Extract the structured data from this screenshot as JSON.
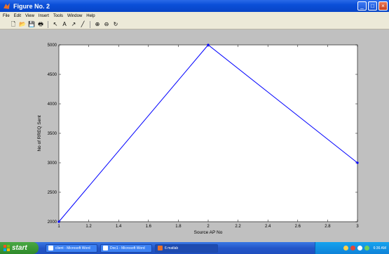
{
  "window": {
    "title": "Figure No. 2",
    "buttons": {
      "minimize": "_",
      "maximize": "□",
      "close": "×"
    }
  },
  "menu": {
    "items": [
      "File",
      "Edit",
      "View",
      "Insert",
      "Tools",
      "Window",
      "Help"
    ]
  },
  "toolbar": {
    "icons": [
      "new-file-icon",
      "open-folder-icon",
      "save-icon",
      "print-icon",
      "select-arrow-icon",
      "text-icon",
      "arrow-icon",
      "line-icon",
      "zoom-in-icon",
      "zoom-out-icon",
      "rotate-icon"
    ],
    "glyphs": [
      "🗋",
      "📂",
      "💾",
      "🖶",
      "↖",
      "A",
      "↗",
      "╱",
      "⊕",
      "⊖",
      "↻"
    ]
  },
  "chart_data": {
    "type": "line",
    "x": [
      1,
      2,
      3
    ],
    "series": [
      {
        "values": [
          2000,
          5000,
          3000
        ],
        "color": "#0000ff"
      }
    ],
    "xlabel": "Source AP No",
    "ylabel": "No of RREQ Sent",
    "xlim": [
      1,
      3
    ],
    "ylim": [
      2000,
      5000
    ],
    "xticks": [
      1,
      1.2,
      1.4,
      1.6,
      1.8,
      2,
      2.2,
      2.4,
      2.6,
      2.8,
      3
    ],
    "xtick_labels": [
      "1",
      "1.2",
      "1.4",
      "1.6",
      "1.8",
      "2",
      "2.2",
      "2.4",
      "2.6",
      "2.8",
      "3"
    ],
    "yticks": [
      2000,
      2500,
      3000,
      3500,
      4000,
      4500,
      5000
    ],
    "ytick_labels": [
      "2000",
      "2500",
      "3000",
      "3500",
      "4000",
      "4500",
      "5000"
    ],
    "grid": false
  },
  "taskbar": {
    "start_label": "start",
    "tasks": [
      "client - Microsoft Word",
      "Doc1 - Microsoft Word",
      "6 matlab"
    ],
    "clock": "6:36 AM",
    "colors": {
      "start": "#3a9a36",
      "bar": "#2456c8",
      "tray": "#0e82d8"
    }
  }
}
